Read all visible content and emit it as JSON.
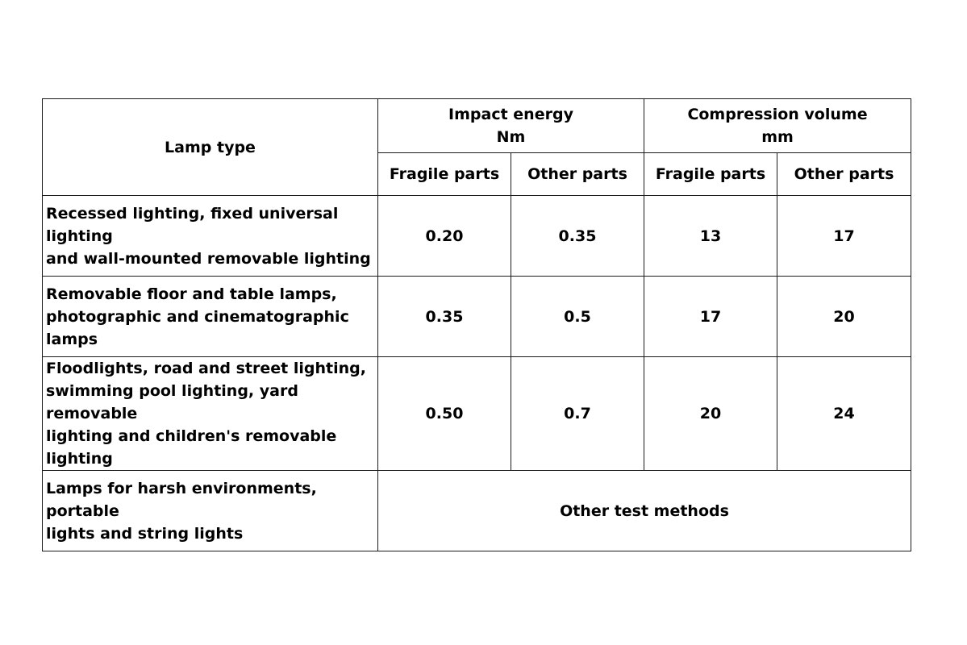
{
  "header": {
    "lamp_type": "Lamp type",
    "impact_energy": {
      "title": "Impact energy",
      "unit": "Nm"
    },
    "compression_volume": {
      "title": "Compression volume",
      "unit": "mm"
    },
    "sub": [
      "Fragile parts",
      "Other parts",
      "Fragile parts",
      "Other parts"
    ]
  },
  "rows": [
    {
      "lamp_lines": [
        "Recessed lighting, fixed universal lighting",
        "and wall-mounted removable lighting"
      ],
      "values": [
        "0.20",
        "0.35",
        "13",
        "17"
      ]
    },
    {
      "lamp_lines": [
        "Removable floor and table lamps,",
        "photographic and cinematographic lamps"
      ],
      "values": [
        "0.35",
        "0.5",
        "17",
        "20"
      ]
    },
    {
      "lamp_lines": [
        "Floodlights, road and street lighting,",
        "swimming pool lighting, yard removable",
        "lighting and children's removable lighting"
      ],
      "values": [
        "0.50",
        "0.7",
        "20",
        "24"
      ]
    }
  ],
  "last_row": {
    "lamp_lines": [
      "Lamps for harsh environments, portable",
      "lights and string lights"
    ],
    "note": "Other test methods"
  }
}
